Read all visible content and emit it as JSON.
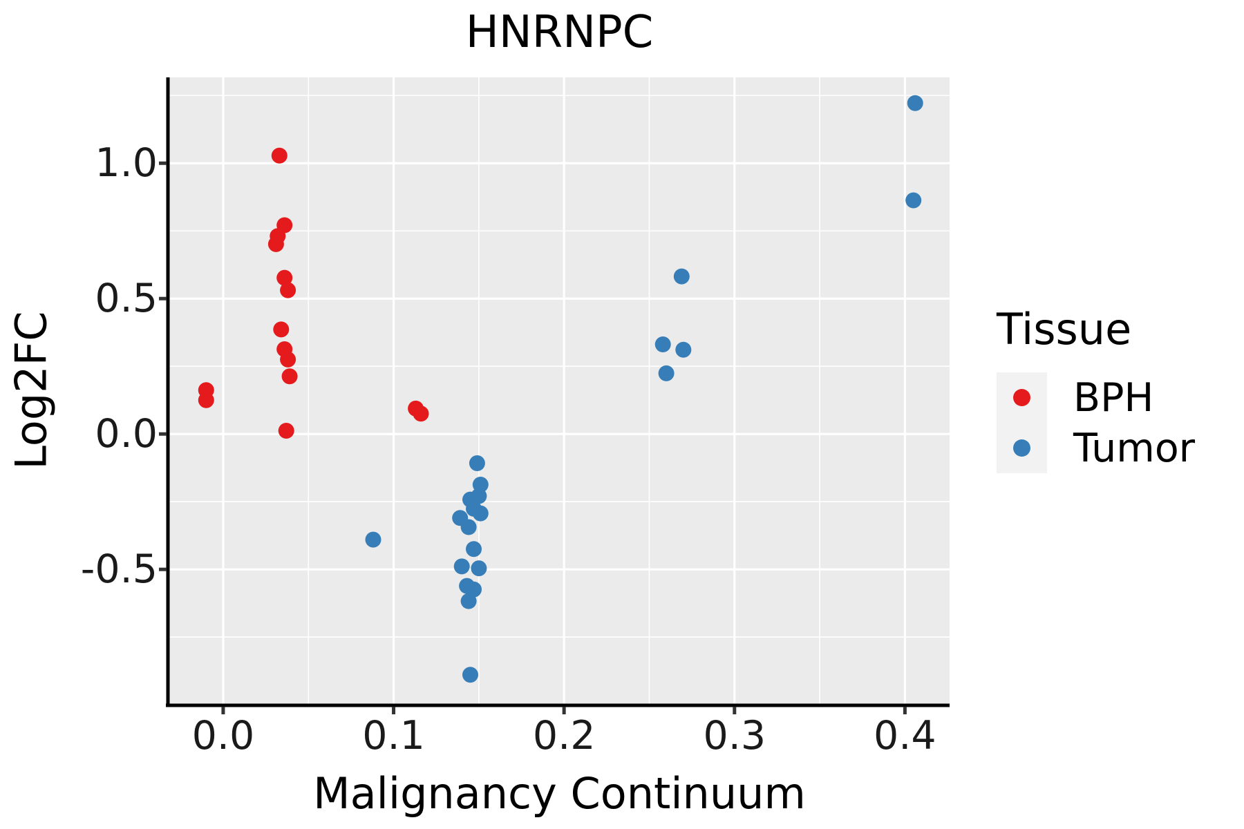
{
  "chart_data": {
    "type": "scatter",
    "title": "HNRNPC",
    "xlabel": "Malignancy Continuum",
    "ylabel": "Log2FC",
    "xlim": [
      -0.0316,
      0.4262
    ],
    "ylim": [
      -0.997,
      1.317
    ],
    "x_ticks": [
      0.0,
      0.1,
      0.2,
      0.3,
      0.4
    ],
    "x_tick_labels": [
      "0.0",
      "0.1",
      "0.2",
      "0.3",
      "0.4"
    ],
    "y_ticks": [
      1.0,
      0.5,
      0.0,
      -0.5
    ],
    "y_tick_labels": [
      "1.0",
      "0.5",
      "0.0",
      "-0.5"
    ],
    "x_minor_ticks": [
      0.05,
      0.15,
      0.25,
      0.35
    ],
    "y_minor_ticks": [
      1.25,
      0.75,
      0.25,
      -0.25,
      -0.75
    ],
    "grid": true,
    "panel_bg": "#EBEBEB",
    "grid_color": "#FFFFFF",
    "legend": {
      "title": "Tissue",
      "position": "right",
      "entries": [
        {
          "label": "BPH",
          "color": "#E41A1C"
        },
        {
          "label": "Tumor",
          "color": "#377EB8"
        }
      ]
    },
    "series": [
      {
        "name": "BPH",
        "color": "#E41A1C",
        "points": [
          [
            -0.01,
            0.162
          ],
          [
            -0.01,
            0.125
          ],
          [
            0.033,
            1.028
          ],
          [
            0.036,
            0.771
          ],
          [
            0.032,
            0.731
          ],
          [
            0.031,
            0.701
          ],
          [
            0.036,
            0.577
          ],
          [
            0.038,
            0.531
          ],
          [
            0.034,
            0.386
          ],
          [
            0.036,
            0.313
          ],
          [
            0.038,
            0.275
          ],
          [
            0.039,
            0.213
          ],
          [
            0.037,
            0.012
          ],
          [
            0.113,
            0.094
          ],
          [
            0.116,
            0.075
          ]
        ]
      },
      {
        "name": "Tumor",
        "color": "#377EB8",
        "points": [
          [
            0.088,
            -0.39
          ],
          [
            0.149,
            -0.108
          ],
          [
            0.151,
            -0.187
          ],
          [
            0.15,
            -0.229
          ],
          [
            0.145,
            -0.242
          ],
          [
            0.147,
            -0.276
          ],
          [
            0.151,
            -0.293
          ],
          [
            0.139,
            -0.31
          ],
          [
            0.144,
            -0.344
          ],
          [
            0.147,
            -0.425
          ],
          [
            0.14,
            -0.489
          ],
          [
            0.15,
            -0.496
          ],
          [
            0.143,
            -0.561
          ],
          [
            0.147,
            -0.574
          ],
          [
            0.144,
            -0.617
          ],
          [
            0.145,
            -0.889
          ],
          [
            0.269,
            0.582
          ],
          [
            0.258,
            0.331
          ],
          [
            0.27,
            0.311
          ],
          [
            0.26,
            0.224
          ],
          [
            0.406,
            1.222
          ],
          [
            0.405,
            0.863
          ]
        ]
      }
    ]
  }
}
